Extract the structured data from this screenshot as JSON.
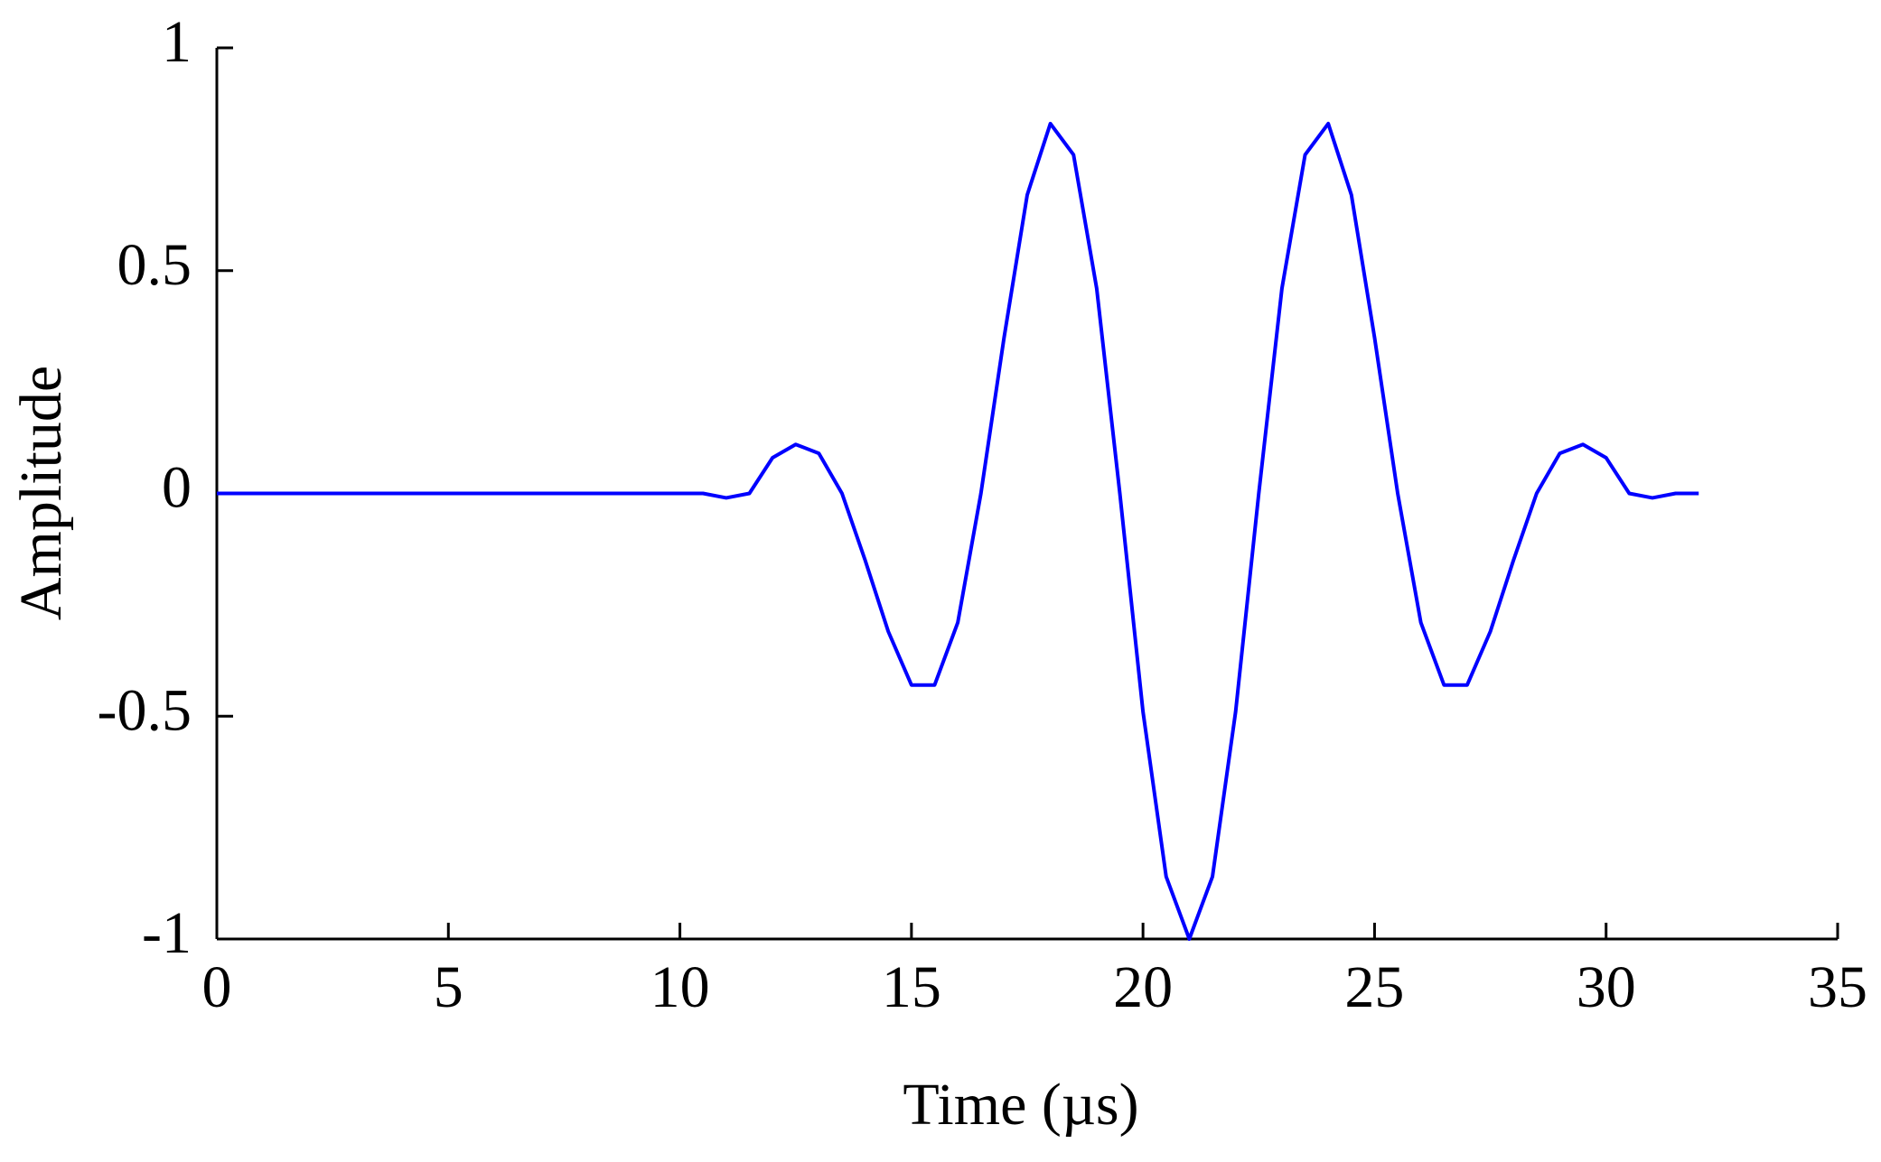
{
  "chart_data": {
    "type": "line",
    "xlabel": "Time (µs)",
    "ylabel": "Amplitude",
    "x": [
      0,
      10,
      10.5,
      11,
      11.5,
      12,
      12.5,
      13,
      13.5,
      14,
      14.5,
      15,
      15.5,
      16,
      16.5,
      17,
      17.5,
      18,
      18.5,
      19,
      19.5,
      20,
      20.5,
      21,
      21.5,
      22,
      22.5,
      23,
      23.5,
      24,
      24.5,
      25,
      25.5,
      26,
      26.5,
      27,
      27.5,
      28,
      28.5,
      29,
      29.5,
      30,
      30.5,
      31,
      31.5,
      32
    ],
    "series": [
      {
        "color": "#0000ff",
        "values": [
          0,
          0,
          0,
          -0.01,
          0,
          0.08,
          0.11,
          0.09,
          0,
          -0.15,
          -0.31,
          -0.43,
          -0.43,
          -0.29,
          0,
          0.35,
          0.67,
          0.83,
          0.76,
          0.46,
          0,
          -0.49,
          -0.86,
          -1,
          -0.86,
          -0.49,
          0,
          0.46,
          0.76,
          0.83,
          0.67,
          0.35,
          0,
          -0.29,
          -0.43,
          -0.43,
          -0.31,
          -0.15,
          0,
          0.09,
          0.11,
          0.08,
          0,
          -0.01,
          0,
          0
        ]
      }
    ],
    "xlim": [
      0,
      35
    ],
    "xticks": [
      0,
      5,
      10,
      15,
      20,
      25,
      30,
      35
    ],
    "ylim": [
      -1,
      1
    ],
    "yticks": [
      -1,
      {
        "value": -0.5,
        "label": "-0.5"
      },
      0,
      0.5,
      1
    ]
  }
}
